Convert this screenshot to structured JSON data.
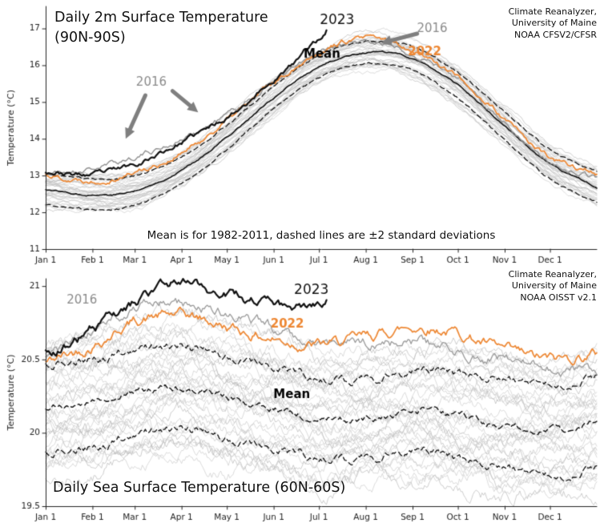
{
  "page": {
    "background": "#ffffff"
  },
  "colors": {
    "line_2023": "#111111",
    "line_2022": "#ED8733",
    "line_2016": "#8f8f8f",
    "mean_line": "#111111",
    "dashed_line": "#111111",
    "background_years_line": "#c6c6c6",
    "arrow": "#7f7f7f",
    "axis": "#222222"
  },
  "chart_data": [
    {
      "type": "line",
      "title": "Daily 2m Surface Temperature",
      "subtitle": "(90N-90S)",
      "credit": "Climate Reanalyzer,\nUniversity of Maine\nNOAA CFSV2/CFSR",
      "note": "Mean is for 1982-2011, dashed lines are ±2 standard deviations",
      "ylabel": "Temperature (°C)",
      "ylim": [
        11,
        17.6
      ],
      "yticks": [
        11,
        12,
        13,
        14,
        15,
        16,
        17
      ],
      "ytick_labels": [
        "11",
        "12",
        "13",
        "14",
        "15",
        "16",
        "17"
      ],
      "xtick_days": [
        0,
        31,
        59,
        90,
        120,
        151,
        181,
        212,
        243,
        273,
        304,
        334
      ],
      "xtick_labels": [
        "Jan 1",
        "Feb 1",
        "Mar 1",
        "Apr 1",
        "May 1",
        "Jun 1",
        "Jul 1",
        "Aug 1",
        "Sep 1",
        "Oct 1",
        "Nov 1",
        "Dec 1"
      ],
      "anchor_days": [
        0,
        31,
        59,
        90,
        120,
        151,
        181,
        212,
        243,
        273,
        304,
        334,
        365
      ],
      "mean": [
        12.62,
        12.48,
        12.58,
        13.15,
        14.05,
        15.1,
        15.95,
        16.35,
        16.18,
        15.45,
        14.35,
        13.3,
        12.68
      ],
      "std2": [
        0.42,
        0.42,
        0.4,
        0.36,
        0.33,
        0.3,
        0.3,
        0.3,
        0.32,
        0.35,
        0.38,
        0.4,
        0.42
      ],
      "mean_dashed": false,
      "series": [
        {
          "name": "2016",
          "days": [
            0,
            31,
            59,
            90,
            120,
            151,
            181,
            212,
            243,
            273,
            304,
            334,
            365
          ],
          "values": [
            13.05,
            13.18,
            13.52,
            13.98,
            14.65,
            15.55,
            16.3,
            16.62,
            16.35,
            15.6,
            14.45,
            13.38,
            12.95
          ],
          "color": "#8f8f8f",
          "width": 1.4,
          "noise": 0.1,
          "seed": 21
        },
        {
          "name": "2022",
          "days": [
            0,
            31,
            59,
            90,
            120,
            151,
            181,
            212,
            243,
            273,
            304,
            334,
            365
          ],
          "values": [
            13.02,
            12.88,
            13.1,
            13.6,
            14.5,
            15.52,
            16.38,
            16.72,
            16.42,
            15.68,
            14.52,
            13.48,
            13.06
          ],
          "color": "#ED8733",
          "width": 1.7,
          "noise": 0.1,
          "seed": 22
        },
        {
          "name": "2023",
          "days": [
            0,
            31,
            59,
            90,
            120,
            151,
            166,
            174,
            181,
            184,
            186
          ],
          "values": [
            13.12,
            13.02,
            13.32,
            13.9,
            14.6,
            15.6,
            16.1,
            16.5,
            16.7,
            16.85,
            16.98
          ],
          "color": "#111111",
          "width": 2.2,
          "noise": 0.09,
          "seed": 23
        }
      ],
      "background_years": {
        "count": 36,
        "seed": 101,
        "color": "#c6c6c6",
        "width": 0.8,
        "spread": 0.9,
        "wiggle": 0.34
      },
      "labels": [
        {
          "text": "2023",
          "day": 193,
          "temp": 17.22,
          "size": 17,
          "weight": "normal",
          "color": "#111111"
        },
        {
          "text": "2016",
          "day": 70,
          "temp": 15.52,
          "size": 15,
          "weight": "normal",
          "color": "#8a8a8a"
        },
        {
          "text": "2016",
          "day": 256,
          "temp": 16.98,
          "size": 15,
          "weight": "normal",
          "color": "#8a8a8a"
        },
        {
          "text": "2022",
          "day": 251,
          "temp": 16.36,
          "size": 15,
          "weight": "bold",
          "color": "#ED8733"
        },
        {
          "text": "Mean",
          "day": 183,
          "temp": 16.3,
          "size": 15,
          "weight": "bold",
          "color": "#000000"
        }
      ],
      "arrows": [
        {
          "from": [
            66,
            15.18
          ],
          "to": [
            53,
            14.0
          ]
        },
        {
          "from": [
            84,
            15.3
          ],
          "to": [
            101,
            14.72
          ]
        },
        {
          "from": [
            246,
            16.86
          ],
          "to": [
            222,
            16.6
          ]
        }
      ]
    },
    {
      "type": "line",
      "title": "Daily Sea Surface Temperature (60N-60S)",
      "subtitle": "",
      "credit": "Climate Reanalyzer,\nUniversity of Maine\nNOAA OISST v2.1",
      "note": "",
      "ylabel": "Temperature (°C)",
      "ylim": [
        19.5,
        21.05
      ],
      "yticks": [
        19.5,
        20,
        20.5,
        21
      ],
      "ytick_labels": [
        "19.5",
        "20",
        "20.5",
        "21"
      ],
      "xtick_days": [
        0,
        31,
        59,
        90,
        120,
        151,
        181,
        212,
        243,
        273,
        304,
        334
      ],
      "xtick_labels": [
        "Jan 1",
        "Feb 1",
        "Mar 1",
        "Apr 1",
        "May 1",
        "Jun 1",
        "Jul 1",
        "Aug 1",
        "Sep 1",
        "Oct 1",
        "Nov 1",
        "Dec 1"
      ],
      "anchor_days": [
        0,
        31,
        59,
        90,
        120,
        151,
        181,
        212,
        243,
        273,
        304,
        334,
        365
      ],
      "mean": [
        20.16,
        20.2,
        20.28,
        20.3,
        20.24,
        20.16,
        20.1,
        20.1,
        20.15,
        20.12,
        20.05,
        20.02,
        20.08
      ],
      "std2": [
        0.3,
        0.3,
        0.29,
        0.28,
        0.28,
        0.28,
        0.27,
        0.27,
        0.27,
        0.29,
        0.3,
        0.31,
        0.31
      ],
      "mean_dashed": true,
      "series": [
        {
          "name": "2016",
          "days": [
            0,
            31,
            59,
            90,
            120,
            151,
            181,
            212,
            243,
            273,
            304,
            334,
            365
          ],
          "values": [
            20.5,
            20.72,
            20.85,
            20.88,
            20.8,
            20.72,
            20.62,
            20.6,
            20.62,
            20.56,
            20.5,
            20.44,
            20.4
          ],
          "color": "#9a9a9a",
          "width": 1.3,
          "noise": 0.05,
          "seed": 41
        },
        {
          "name": "2022",
          "days": [
            0,
            31,
            59,
            90,
            120,
            151,
            181,
            212,
            243,
            273,
            304,
            334,
            365
          ],
          "values": [
            20.48,
            20.6,
            20.76,
            20.8,
            20.72,
            20.64,
            20.6,
            20.65,
            20.72,
            20.68,
            20.56,
            20.5,
            20.54
          ],
          "color": "#ED8733",
          "width": 1.7,
          "noise": 0.05,
          "seed": 42
        },
        {
          "name": "2023",
          "days": [
            0,
            20,
            40,
            59,
            80,
            90,
            100,
            110,
            120,
            135,
            151,
            165,
            181,
            186
          ],
          "values": [
            20.54,
            20.63,
            20.76,
            20.88,
            21.0,
            21.04,
            21.02,
            20.98,
            20.96,
            20.9,
            20.86,
            20.84,
            20.88,
            20.9
          ],
          "color": "#111111",
          "width": 2.2,
          "noise": 0.045,
          "seed": 43
        }
      ],
      "background_years": {
        "count": 36,
        "seed": 301,
        "color": "#c6c6c6",
        "width": 0.8,
        "spread": 0.9,
        "wiggle": 0.2
      },
      "labels": [
        {
          "text": "2016",
          "day": 24,
          "temp": 20.9,
          "size": 15,
          "weight": "normal",
          "color": "#8a8a8a"
        },
        {
          "text": "2023",
          "day": 176,
          "temp": 20.97,
          "size": 17,
          "weight": "normal",
          "color": "#111111"
        },
        {
          "text": "2022",
          "day": 160,
          "temp": 20.74,
          "size": 15,
          "weight": "bold",
          "color": "#ED8733"
        },
        {
          "text": "Mean",
          "day": 163,
          "temp": 20.26,
          "size": 15,
          "weight": "bold",
          "color": "#000000"
        }
      ],
      "arrows": []
    }
  ]
}
